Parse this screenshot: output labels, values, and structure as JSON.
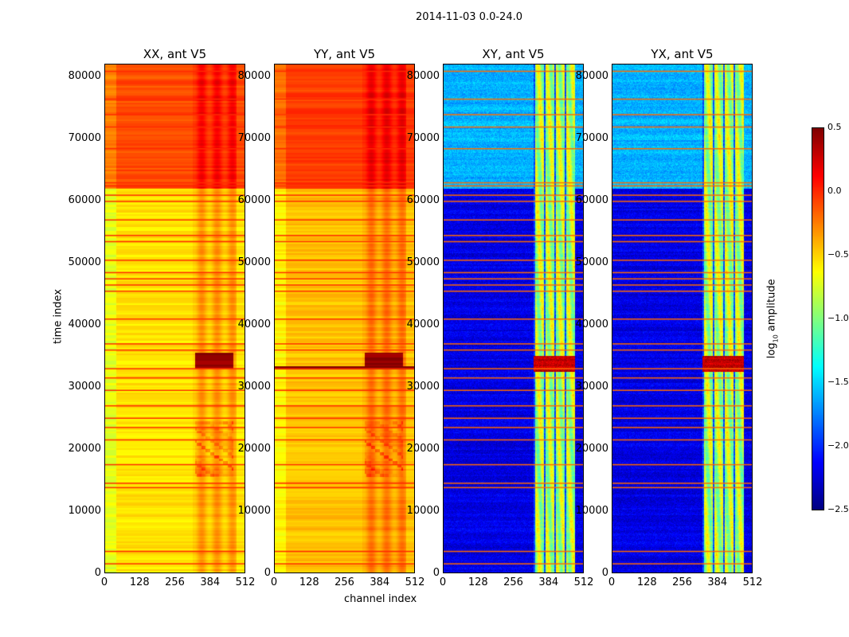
{
  "chart_data": {
    "type": "heatmap",
    "title": "2014-11-03 0.0-24.0",
    "xlabel": "channel index",
    "ylabel": "time index",
    "xlim": [
      0,
      512
    ],
    "ylim": [
      0,
      82000
    ],
    "xticks": [
      "0",
      "128",
      "256",
      "384",
      "512"
    ],
    "yticks": [
      "0",
      "10000",
      "20000",
      "30000",
      "40000",
      "50000",
      "60000",
      "70000",
      "80000"
    ],
    "panels": [
      {
        "title": "XX, ant V5",
        "base": -0.55,
        "upper_base": -0.1
      },
      {
        "title": "YY, ant V5",
        "base": -0.45,
        "upper_base": -0.05
      },
      {
        "title": "XY, ant V5",
        "base": -2.2,
        "upper_base": -1.6
      },
      {
        "title": "YX, ant V5",
        "base": -2.2,
        "upper_base": -1.6
      }
    ],
    "flagged_time_indices": [
      1500,
      3500,
      13800,
      14500,
      17500,
      21500,
      23500,
      25000,
      27000,
      29500,
      31500,
      33000,
      36000,
      37000,
      41000,
      45500,
      46500,
      47500,
      48500,
      50500,
      53500,
      54500,
      57000,
      60000,
      61000,
      62500,
      63000,
      68500,
      72000,
      74000,
      76500,
      81000
    ],
    "colorbar": {
      "label": "log10 amplitude",
      "label_main": "log",
      "label_sub": "10",
      "label_rest": " amplitude",
      "min": -2.5,
      "max": 0.5,
      "ticks": [
        "0.5",
        "0.0",
        "−0.5",
        "−1.0",
        "−1.5",
        "−2.0",
        "−2.5"
      ],
      "colormap": "jet"
    }
  }
}
